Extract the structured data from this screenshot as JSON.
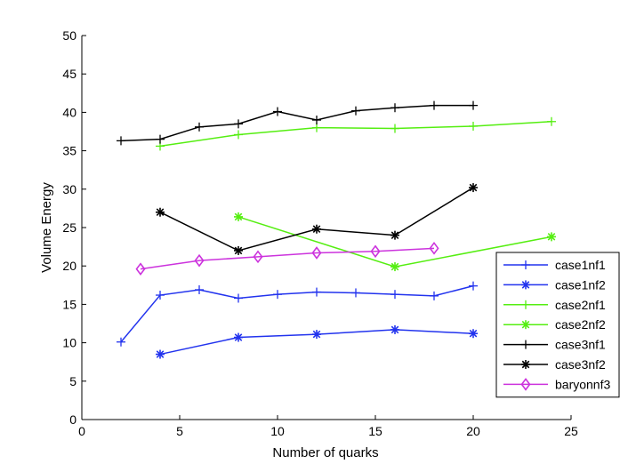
{
  "chart_data": {
    "type": "line",
    "title": "",
    "xlabel": "Number of quarks",
    "ylabel": "Volume Energy",
    "xlim": [
      0,
      25
    ],
    "ylim": [
      0,
      50
    ],
    "xticks": [
      0,
      5,
      10,
      15,
      20,
      25
    ],
    "yticks": [
      0,
      5,
      10,
      15,
      20,
      25,
      30,
      35,
      40,
      45,
      50
    ],
    "grid": false,
    "legend_position": "bottom-right",
    "series": [
      {
        "name": "case1nf1",
        "color": "#2233ee",
        "marker": "plus",
        "x": [
          2,
          4,
          6,
          8,
          10,
          12,
          14,
          16,
          18,
          20
        ],
        "y": [
          10.1,
          16.2,
          16.9,
          15.8,
          16.3,
          16.6,
          16.5,
          16.3,
          16.1,
          17.4
        ]
      },
      {
        "name": "case1nf2",
        "color": "#2233ee",
        "marker": "asterisk",
        "x": [
          4,
          8,
          12,
          16,
          20
        ],
        "y": [
          8.5,
          10.7,
          11.1,
          11.7,
          11.2
        ]
      },
      {
        "name": "case2nf1",
        "color": "#55ee11",
        "marker": "plus",
        "x": [
          4,
          8,
          12,
          16,
          20,
          24
        ],
        "y": [
          35.6,
          37.1,
          38.0,
          37.9,
          38.2,
          38.8
        ]
      },
      {
        "name": "case2nf2",
        "color": "#55ee11",
        "marker": "asterisk",
        "x": [
          8,
          16,
          24
        ],
        "y": [
          26.4,
          19.9,
          23.8
        ]
      },
      {
        "name": "case3nf1",
        "color": "#000000",
        "marker": "plus",
        "x": [
          2,
          4,
          6,
          8,
          10,
          12,
          14,
          16,
          18,
          20
        ],
        "y": [
          36.3,
          36.5,
          38.1,
          38.5,
          40.1,
          39.0,
          40.2,
          40.6,
          40.9,
          40.9
        ]
      },
      {
        "name": "case3nf2",
        "color": "#000000",
        "marker": "asterisk",
        "x": [
          4,
          8,
          12,
          16,
          20
        ],
        "y": [
          27.0,
          22.0,
          24.8,
          24.0,
          30.2
        ]
      },
      {
        "name": "baryonnf3",
        "color": "#cc33dd",
        "marker": "diamond",
        "x": [
          3,
          6,
          9,
          12,
          15,
          18
        ],
        "y": [
          19.6,
          20.7,
          21.2,
          21.7,
          21.9,
          22.3
        ]
      }
    ]
  }
}
